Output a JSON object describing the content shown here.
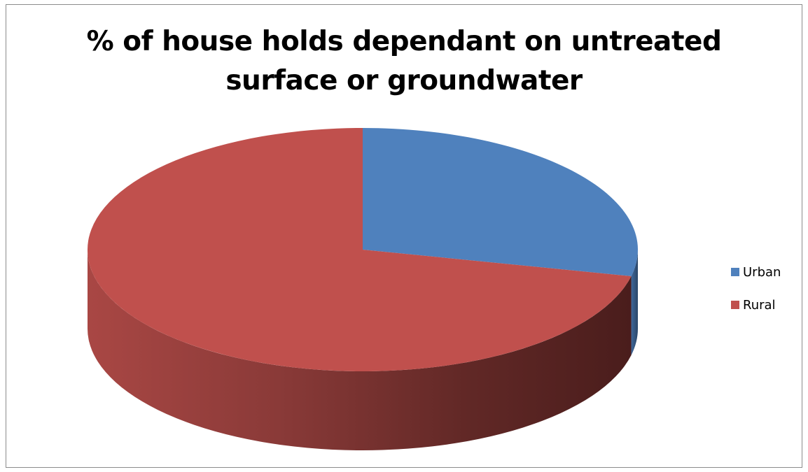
{
  "chart_data": {
    "type": "pie",
    "title_lines": [
      "% of house holds dependant on untreated",
      "surface or groundwater"
    ],
    "categories": [
      "Urban",
      "Rural"
    ],
    "values": [
      28.5,
      71.5
    ],
    "colors": [
      "#4F81BD",
      "#C0504D"
    ],
    "legend": "right",
    "style": "3d"
  }
}
